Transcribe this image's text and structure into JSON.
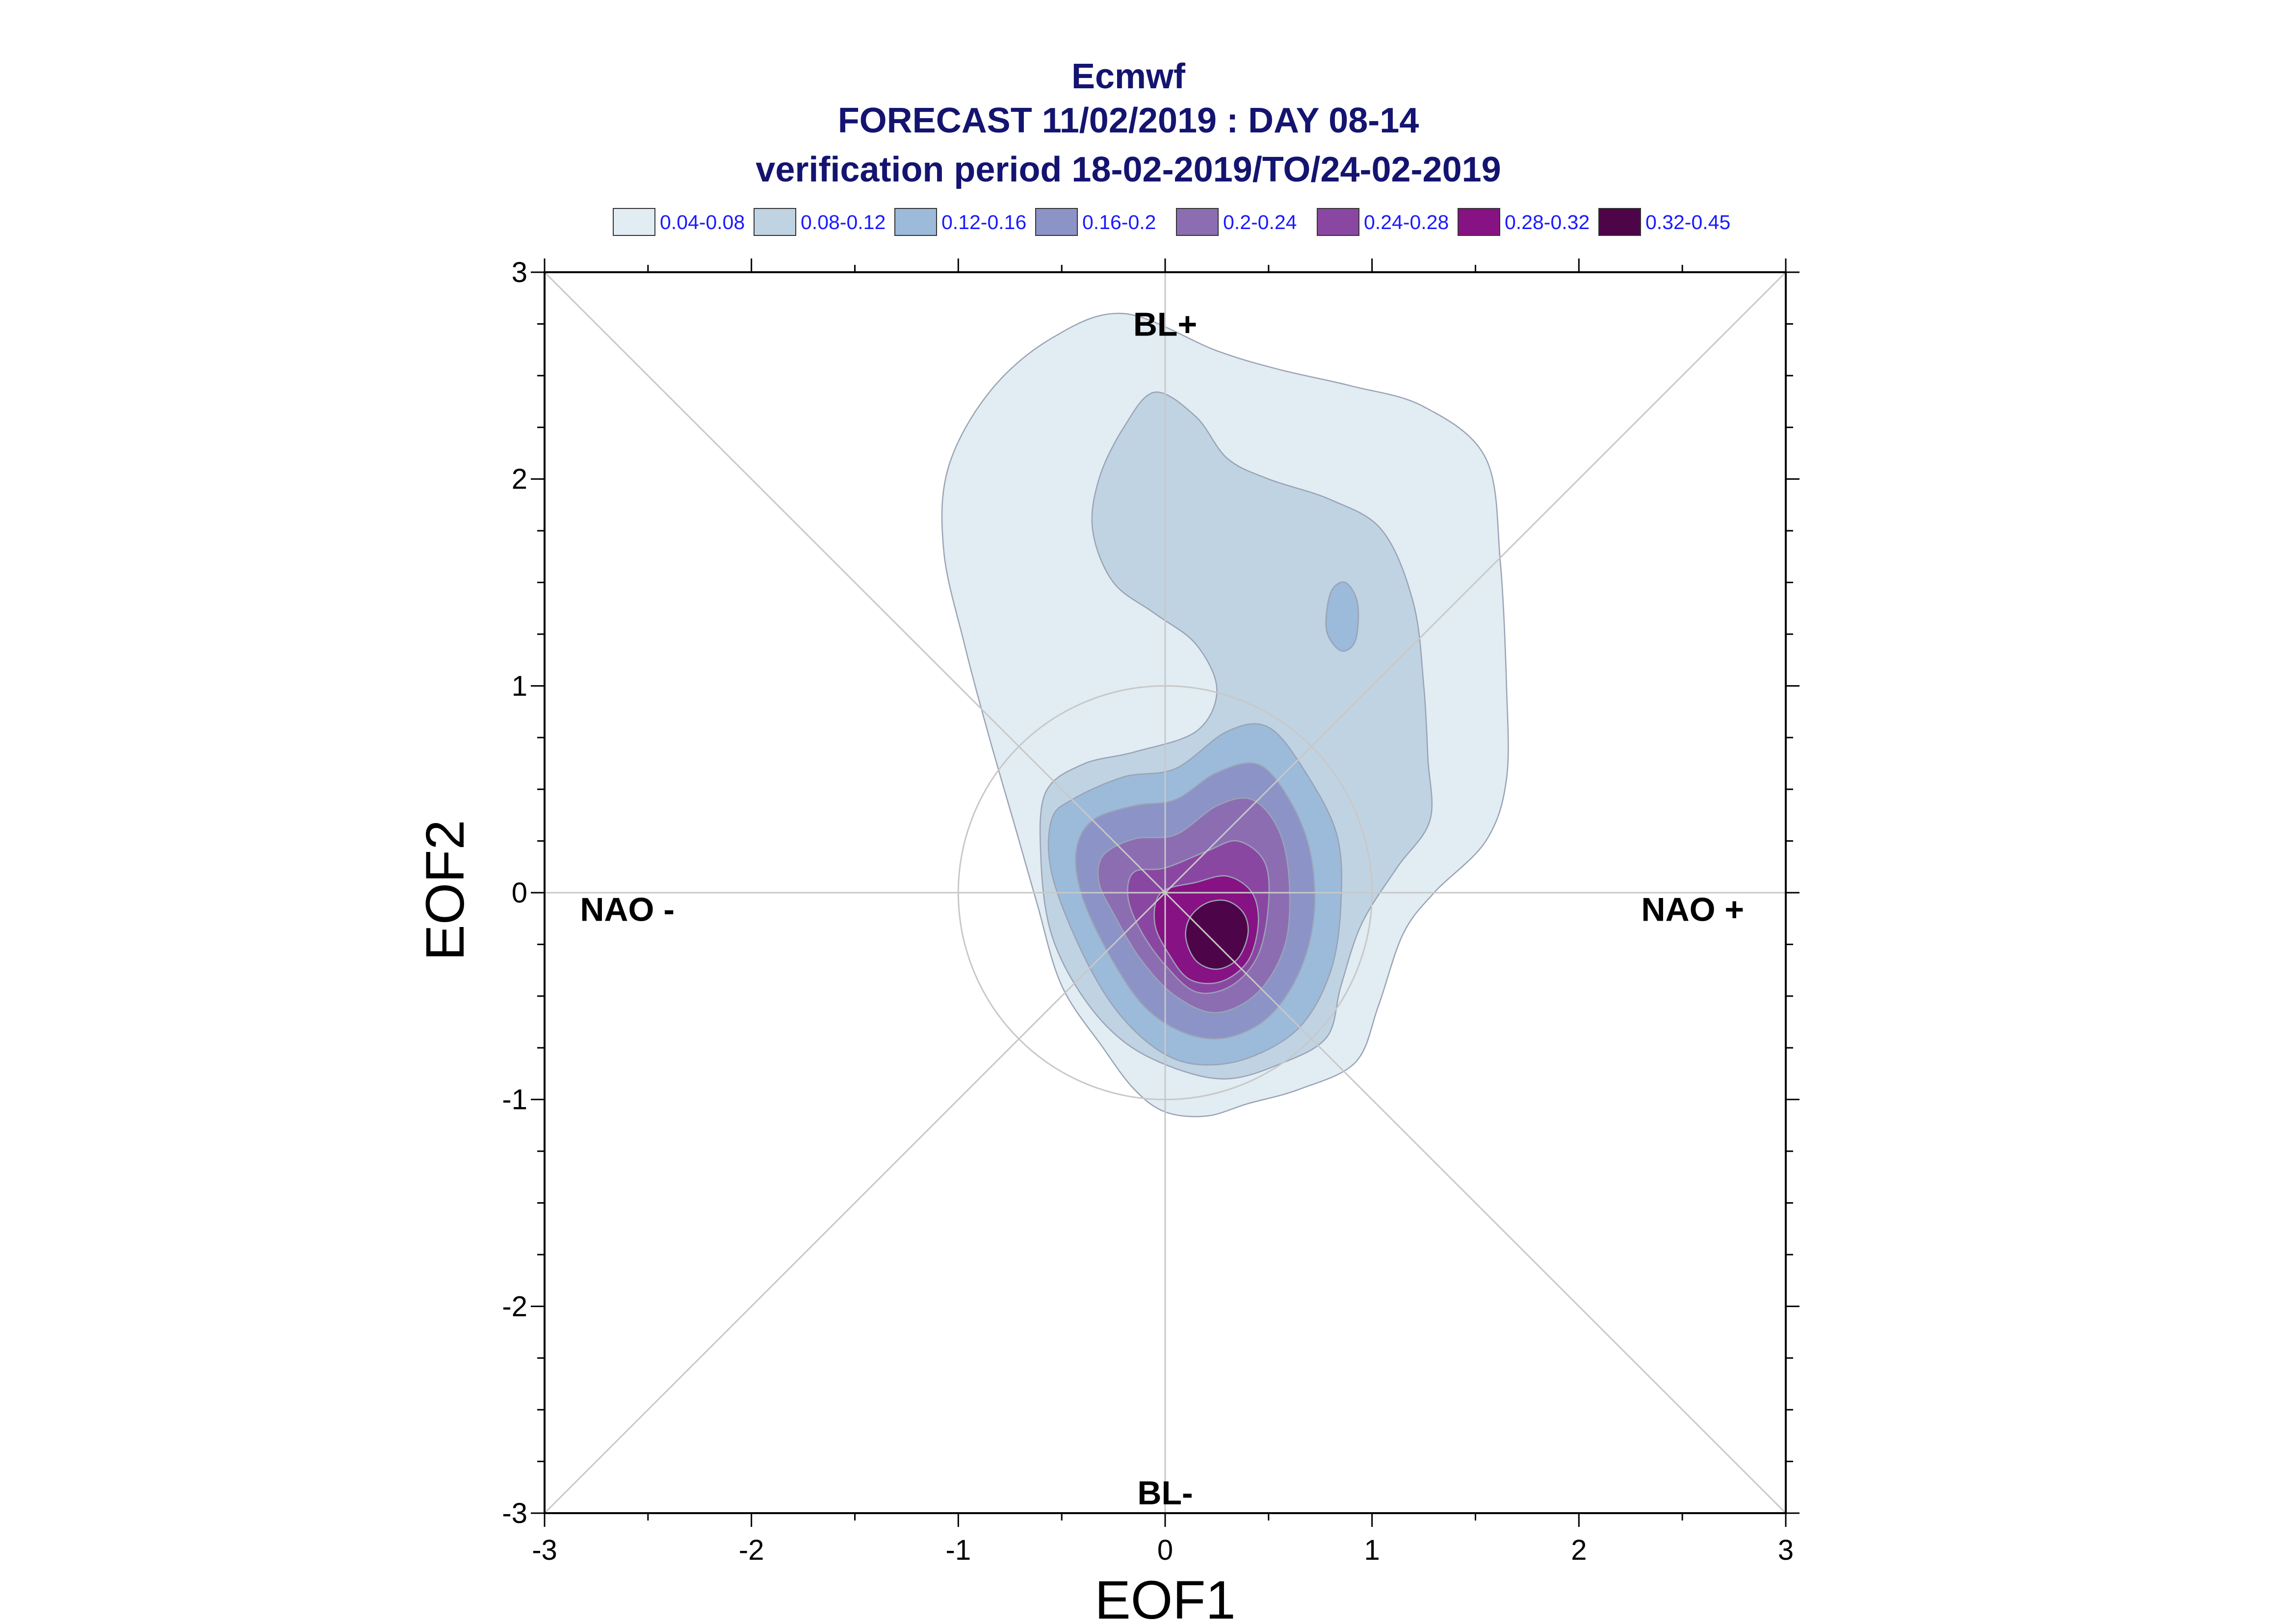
{
  "chart_data": {
    "type": "contour",
    "title": [
      "Ecmwf",
      "FORECAST 11/02/2019 : DAY 08-14",
      "verification period 18-02-2019/TO/24-02-2019"
    ],
    "xlabel": "EOF1",
    "ylabel": "EOF2",
    "xlim": [
      -3,
      3
    ],
    "ylim": [
      -3,
      3
    ],
    "xticks": [
      "-3",
      "-2",
      "-1",
      "0",
      "1",
      "2",
      "3"
    ],
    "yticks": [
      "3",
      "2",
      "1",
      "0",
      "-1",
      "-2",
      "-3"
    ],
    "xtick_values": [
      -3,
      -2,
      -1,
      0,
      1,
      2,
      3
    ],
    "ytick_values": [
      3,
      2,
      1,
      0,
      -1,
      -2,
      -3
    ],
    "regimes": [
      {
        "label": "BL+",
        "x": 0.0,
        "y": 2.75
      },
      {
        "label": "BL-",
        "x": 0.0,
        "y": -2.9
      },
      {
        "label": "NAO -",
        "x": -2.6,
        "y": -0.08
      },
      {
        "label": "NAO +",
        "x": 2.55,
        "y": -0.08
      }
    ],
    "reference_circle": {
      "cx": 0,
      "cy": 0,
      "r": 1
    },
    "legend": [
      {
        "label": "0.04-0.08",
        "color": "#e1ecf3"
      },
      {
        "label": "0.08-0.12",
        "color": "#c0d3e3"
      },
      {
        "label": "0.12-0.16",
        "color": "#9cbad9"
      },
      {
        "label": "0.16-0.2",
        "color": "#8c93c6"
      },
      {
        "label": "0.2-0.24",
        "color": "#8c6db2"
      },
      {
        "label": "0.24-0.28",
        "color": "#8a47a2"
      },
      {
        "label": "0.28-0.32",
        "color": "#861283"
      },
      {
        "label": "0.32-0.45",
        "color": "#4e0448"
      }
    ],
    "contours": [
      {
        "level": "0.04-0.08",
        "color": "#e1ecf3",
        "points": [
          [
            -0.2,
            2.8
          ],
          [
            0.25,
            2.62
          ],
          [
            0.55,
            2.53
          ],
          [
            0.9,
            2.45
          ],
          [
            1.25,
            2.35
          ],
          [
            1.55,
            2.1
          ],
          [
            1.62,
            1.6
          ],
          [
            1.65,
            1.0
          ],
          [
            1.65,
            0.55
          ],
          [
            1.55,
            0.25
          ],
          [
            1.3,
            0.0
          ],
          [
            1.15,
            -0.2
          ],
          [
            1.03,
            -0.55
          ],
          [
            0.92,
            -0.82
          ],
          [
            0.65,
            -0.95
          ],
          [
            0.4,
            -1.02
          ],
          [
            0.2,
            -1.08
          ],
          [
            0.0,
            -1.06
          ],
          [
            -0.15,
            -0.95
          ],
          [
            -0.3,
            -0.75
          ],
          [
            -0.5,
            -0.45
          ],
          [
            -0.62,
            -0.05
          ],
          [
            -0.72,
            0.3
          ],
          [
            -0.85,
            0.75
          ],
          [
            -0.97,
            1.2
          ],
          [
            -1.07,
            1.65
          ],
          [
            -1.05,
            2.05
          ],
          [
            -0.85,
            2.42
          ],
          [
            -0.55,
            2.68
          ]
        ]
      },
      {
        "level": "0.08-0.12",
        "color": "#c0d3e3",
        "points": [
          [
            -0.2,
            2.25
          ],
          [
            -0.05,
            2.42
          ],
          [
            0.15,
            2.3
          ],
          [
            0.3,
            2.1
          ],
          [
            0.5,
            2.0
          ],
          [
            0.8,
            1.9
          ],
          [
            1.05,
            1.75
          ],
          [
            1.2,
            1.4
          ],
          [
            1.25,
            1.0
          ],
          [
            1.27,
            0.65
          ],
          [
            1.28,
            0.35
          ],
          [
            1.12,
            0.12
          ],
          [
            0.95,
            -0.15
          ],
          [
            0.85,
            -0.45
          ],
          [
            0.78,
            -0.7
          ],
          [
            0.55,
            -0.83
          ],
          [
            0.3,
            -0.9
          ],
          [
            0.05,
            -0.85
          ],
          [
            -0.2,
            -0.72
          ],
          [
            -0.4,
            -0.5
          ],
          [
            -0.55,
            -0.2
          ],
          [
            -0.6,
            0.15
          ],
          [
            -0.58,
            0.48
          ],
          [
            -0.4,
            0.62
          ],
          [
            -0.15,
            0.68
          ],
          [
            0.15,
            0.78
          ],
          [
            0.25,
            0.98
          ],
          [
            0.15,
            1.2
          ],
          [
            -0.05,
            1.35
          ],
          [
            -0.25,
            1.5
          ],
          [
            -0.35,
            1.75
          ],
          [
            -0.32,
            2.0
          ]
        ]
      },
      {
        "level": "0.12-0.16",
        "color": "#9cbad9",
        "points": [
          [
            -0.45,
            0.45
          ],
          [
            -0.2,
            0.56
          ],
          [
            0.05,
            0.6
          ],
          [
            0.3,
            0.78
          ],
          [
            0.5,
            0.8
          ],
          [
            0.68,
            0.58
          ],
          [
            0.83,
            0.28
          ],
          [
            0.85,
            -0.05
          ],
          [
            0.8,
            -0.38
          ],
          [
            0.65,
            -0.65
          ],
          [
            0.4,
            -0.8
          ],
          [
            0.15,
            -0.83
          ],
          [
            -0.05,
            -0.75
          ],
          [
            -0.25,
            -0.55
          ],
          [
            -0.42,
            -0.25
          ],
          [
            -0.55,
            0.1
          ],
          [
            -0.55,
            0.35
          ]
        ]
      },
      {
        "level": "0.12-0.16",
        "color": "#9cbad9",
        "points": [
          [
            0.8,
            1.45
          ],
          [
            0.87,
            1.5
          ],
          [
            0.93,
            1.4
          ],
          [
            0.92,
            1.22
          ],
          [
            0.85,
            1.17
          ],
          [
            0.78,
            1.27
          ]
        ]
      },
      {
        "level": "0.16-0.2",
        "color": "#8c93c6",
        "points": [
          [
            -0.35,
            0.35
          ],
          [
            -0.15,
            0.42
          ],
          [
            0.05,
            0.45
          ],
          [
            0.25,
            0.58
          ],
          [
            0.45,
            0.62
          ],
          [
            0.6,
            0.45
          ],
          [
            0.7,
            0.2
          ],
          [
            0.72,
            -0.1
          ],
          [
            0.65,
            -0.38
          ],
          [
            0.5,
            -0.6
          ],
          [
            0.3,
            -0.7
          ],
          [
            0.1,
            -0.68
          ],
          [
            -0.1,
            -0.55
          ],
          [
            -0.27,
            -0.3
          ],
          [
            -0.4,
            -0.02
          ],
          [
            -0.43,
            0.2
          ]
        ]
      },
      {
        "level": "0.2-0.24",
        "color": "#8c6db2",
        "points": [
          [
            -0.3,
            0.18
          ],
          [
            -0.15,
            0.26
          ],
          [
            0.05,
            0.28
          ],
          [
            0.25,
            0.42
          ],
          [
            0.42,
            0.45
          ],
          [
            0.55,
            0.3
          ],
          [
            0.6,
            0.05
          ],
          [
            0.58,
            -0.25
          ],
          [
            0.45,
            -0.48
          ],
          [
            0.25,
            -0.58
          ],
          [
            0.05,
            -0.5
          ],
          [
            -0.12,
            -0.32
          ],
          [
            -0.25,
            -0.1
          ],
          [
            -0.32,
            0.05
          ]
        ]
      },
      {
        "level": "0.24-0.28",
        "color": "#8a47a2",
        "points": [
          [
            -0.15,
            0.1
          ],
          [
            0.0,
            0.12
          ],
          [
            0.2,
            0.2
          ],
          [
            0.35,
            0.25
          ],
          [
            0.48,
            0.15
          ],
          [
            0.5,
            -0.05
          ],
          [
            0.45,
            -0.3
          ],
          [
            0.32,
            -0.45
          ],
          [
            0.15,
            -0.48
          ],
          [
            0.0,
            -0.35
          ],
          [
            -0.12,
            -0.18
          ],
          [
            -0.18,
            -0.02
          ]
        ]
      },
      {
        "level": "0.28-0.32",
        "color": "#861283",
        "points": [
          [
            -0.02,
            0.0
          ],
          [
            0.15,
            0.05
          ],
          [
            0.3,
            0.08
          ],
          [
            0.42,
            0.0
          ],
          [
            0.45,
            -0.15
          ],
          [
            0.4,
            -0.33
          ],
          [
            0.27,
            -0.43
          ],
          [
            0.12,
            -0.42
          ],
          [
            0.02,
            -0.3
          ],
          [
            -0.05,
            -0.15
          ]
        ]
      },
      {
        "level": "0.32-0.45",
        "color": "#4e0448",
        "points": [
          [
            0.12,
            -0.12
          ],
          [
            0.2,
            -0.05
          ],
          [
            0.3,
            -0.04
          ],
          [
            0.38,
            -0.1
          ],
          [
            0.4,
            -0.2
          ],
          [
            0.35,
            -0.32
          ],
          [
            0.25,
            -0.37
          ],
          [
            0.15,
            -0.33
          ],
          [
            0.1,
            -0.22
          ]
        ]
      }
    ]
  }
}
